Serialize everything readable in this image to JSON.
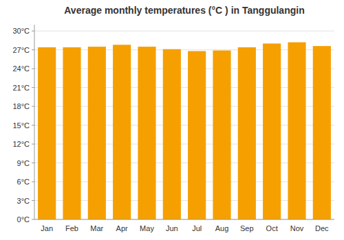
{
  "chart_data": {
    "type": "bar",
    "title": "Average monthly temperatures (°C ) in Tanggulangin",
    "categories": [
      "Jan",
      "Feb",
      "Mar",
      "Apr",
      "May",
      "Jun",
      "Jul",
      "Aug",
      "Sep",
      "Oct",
      "Nov",
      "Dec"
    ],
    "values": [
      27.4,
      27.4,
      27.5,
      27.8,
      27.5,
      27.1,
      26.8,
      26.9,
      27.4,
      28.0,
      28.2,
      27.6
    ],
    "color": "#F5A000",
    "ylim": [
      0,
      31
    ],
    "yticks": [
      {
        "value": 0,
        "label": "0°C"
      },
      {
        "value": 3,
        "label": "3°C"
      },
      {
        "value": 6,
        "label": "6°C"
      },
      {
        "value": 9,
        "label": "9°C"
      },
      {
        "value": 12,
        "label": "12°C"
      },
      {
        "value": 15,
        "label": "15°C"
      },
      {
        "value": 18,
        "label": "18°C"
      },
      {
        "value": 21,
        "label": "21°C"
      },
      {
        "value": 24,
        "label": "24°C"
      },
      {
        "value": 27,
        "label": "27°C"
      },
      {
        "value": 30,
        "label": "30°C"
      }
    ],
    "grid": true
  }
}
